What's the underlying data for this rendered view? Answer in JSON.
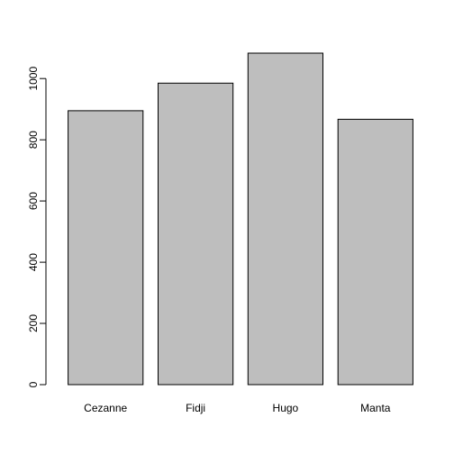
{
  "chart_data": {
    "type": "bar",
    "title": "",
    "xlabel": "",
    "ylabel": "",
    "categories": [
      "Cezanne",
      "Fidji",
      "Hugo",
      "Manta"
    ],
    "values": [
      895,
      985,
      1083,
      867
    ],
    "ylim": [
      0,
      1083
    ],
    "yticks": [
      "0",
      "200",
      "400",
      "600",
      "800",
      "1000"
    ],
    "grid": false,
    "legend": "none",
    "bar_fill": "#bebebe",
    "bar_stroke": "#000000"
  }
}
